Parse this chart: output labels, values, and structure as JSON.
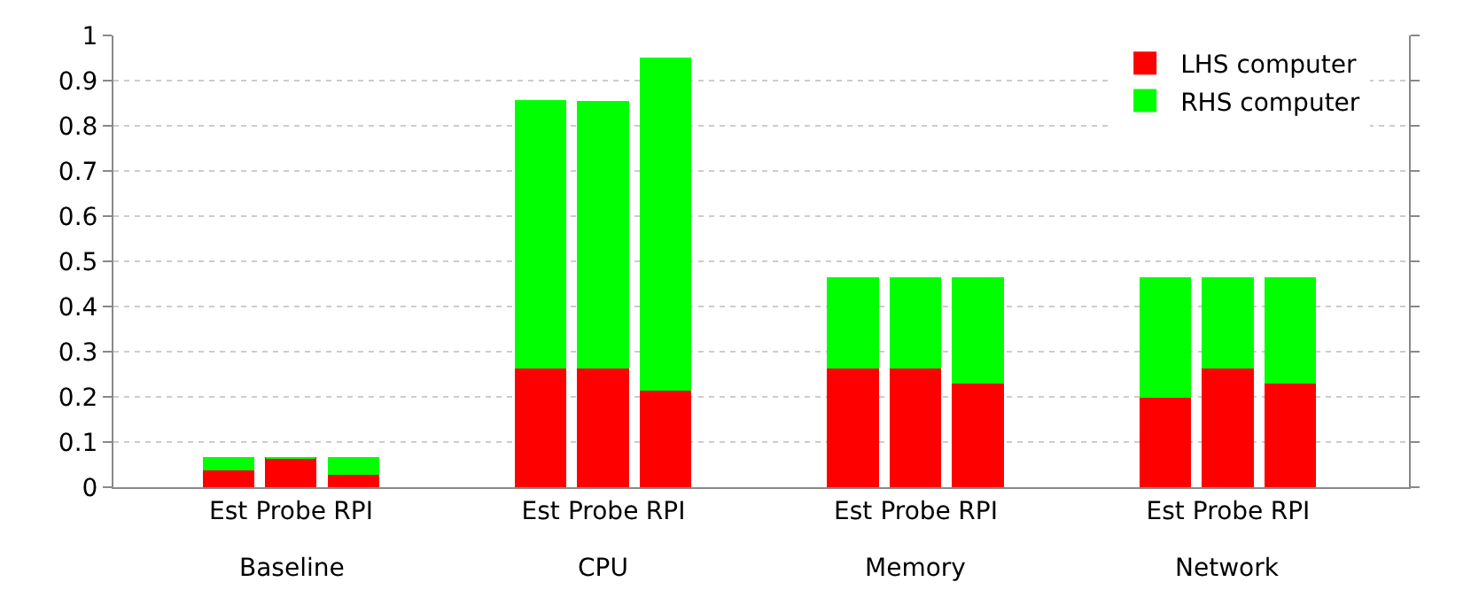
{
  "chart_data": {
    "type": "bar",
    "stacked": true,
    "categories": [
      "Est",
      "Probe",
      "RPI",
      "Est",
      "Probe",
      "RPI",
      "Est",
      "Probe",
      "RPI",
      "Est",
      "Probe",
      "RPI"
    ],
    "series": [
      {
        "name": "LHS computer",
        "color": "#ff0000",
        "values": [
          0.04,
          0.065,
          0.03,
          0.265,
          0.265,
          0.215,
          0.265,
          0.265,
          0.232,
          0.2,
          0.265,
          0.232
        ]
      },
      {
        "name": "RHS computer",
        "color": "#00ff00",
        "values": [
          0.025,
          0,
          0.035,
          0.59,
          0.588,
          0.735,
          0.197,
          0.197,
          0.23,
          0.262,
          0.197,
          0.23
        ]
      }
    ],
    "annotations": [
      "Baseline",
      "CPU",
      "Memory",
      "Network"
    ],
    "ylim": [
      0,
      1
    ],
    "yticks": [
      0,
      0.1,
      0.2,
      0.3,
      0.4,
      0.5,
      0.6,
      0.7,
      0.8,
      0.9,
      1
    ],
    "grid": "y",
    "legend": "top right"
  }
}
